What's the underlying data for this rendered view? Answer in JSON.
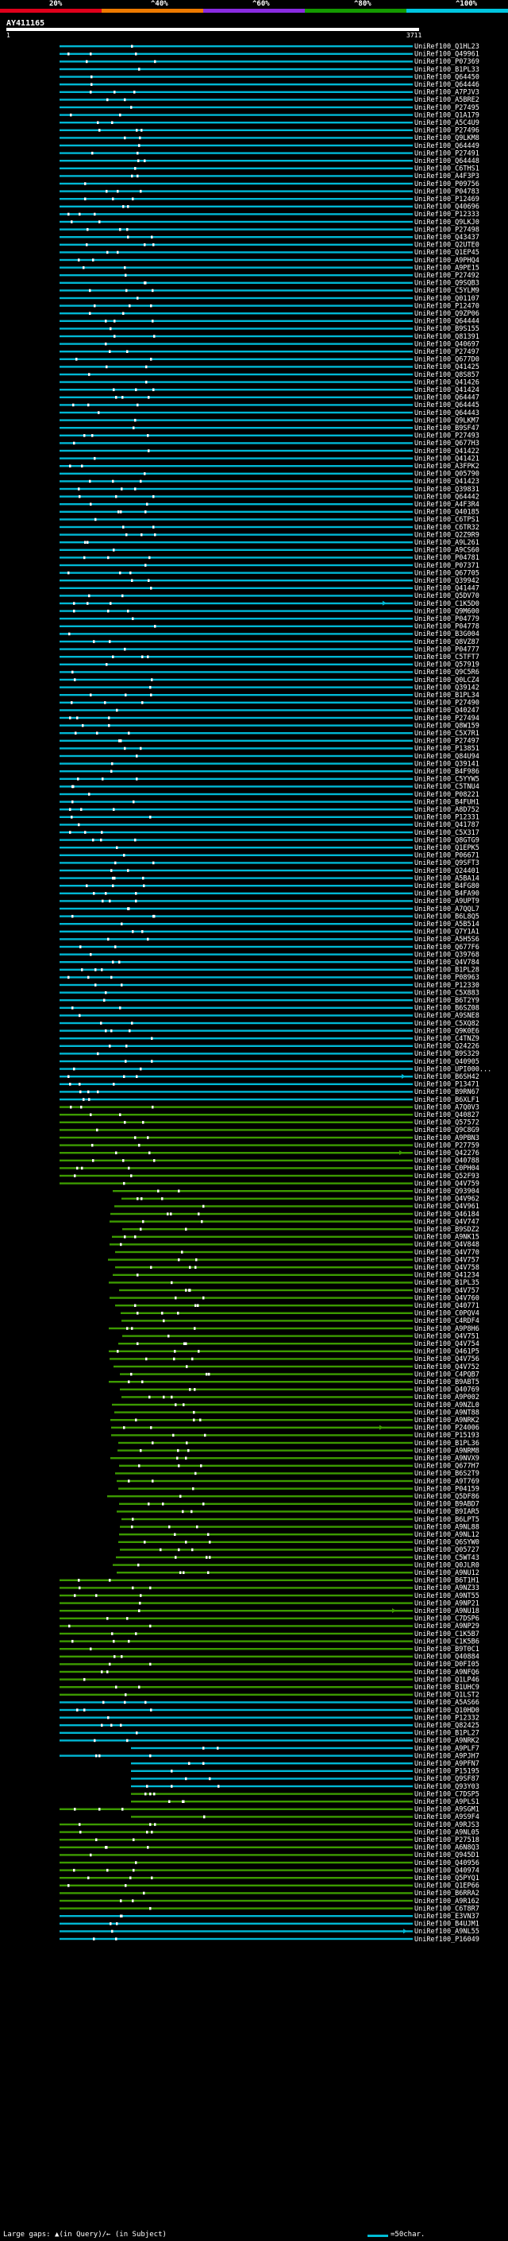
{
  "legend": {
    "labels": [
      "20%",
      "^40%",
      "^60%",
      "^80%",
      "^100%"
    ],
    "colors": [
      "#e0001b",
      "#ee7a00",
      "#8a2be2",
      "#149a00",
      "#00c6e0"
    ]
  },
  "query": {
    "title": "AY411165",
    "start": "1",
    "end": "3711"
  },
  "colors": {
    "cyan": "#00b7d4",
    "green": "#3c9a00",
    "marker": "#ffffff"
  },
  "hits": [
    "UniRef100_Q1HL23",
    "UniRef100_Q49961",
    "UniRef100_P07369",
    "UniRef100_B1PL33",
    "UniRef100_Q64450",
    "UniRef100_Q64446",
    "UniRef100_A7PJV3",
    "UniRef100_A5BRE2",
    "UniRef100_P27495",
    "UniRef100_Q1A179",
    "UniRef100_A5C4U9",
    "UniRef100_P27496",
    "UniRef100_Q9LKM8",
    "UniRef100_Q64449",
    "UniRef100_P27491",
    "UniRef100_Q64448",
    "UniRef100_C6THS1",
    "UniRef100_A4F3P3",
    "UniRef100_P09756",
    "UniRef100_P04783",
    "UniRef100_P12469",
    "UniRef100_Q40696",
    "UniRef100_P12333",
    "UniRef100_Q9LKJ0",
    "UniRef100_P27498",
    "UniRef100_Q43437",
    "UniRef100_Q2UTE0",
    "UniRef100_Q1EP45",
    "UniRef100_A9PHQ4",
    "UniRef100_A9PE15",
    "UniRef100_P27492",
    "UniRef100_Q9SQB3",
    "UniRef100_C5YLM9",
    "UniRef100_Q01107",
    "UniRef100_P12470",
    "UniRef100_Q9ZP06",
    "UniRef100_Q64444",
    "UniRef100_B9S155",
    "UniRef100_Q81391",
    "UniRef100_Q40697",
    "UniRef100_P27497",
    "UniRef100_Q677D0",
    "UniRef100_Q41425",
    "UniRef100_Q8S857",
    "UniRef100_Q41426",
    "UniRef100_Q41424",
    "UniRef100_Q64447",
    "UniRef100_Q64445",
    "UniRef100_Q64443",
    "UniRef100_Q9LKM7",
    "UniRef100_B9SF47",
    "UniRef100_P27493",
    "UniRef100_Q677H3",
    "UniRef100_Q41422",
    "UniRef100_Q41421",
    "UniRef100_A3FPK2",
    "UniRef100_Q05790",
    "UniRef100_Q41423",
    "UniRef100_Q39831",
    "UniRef100_Q64442",
    "UniRef100_A4F3R4",
    "UniRef100_Q40185",
    "UniRef100_C6TPS1",
    "UniRef100_C6TR32",
    "UniRef100_Q2Z9R9",
    "UniRef100_A9L261",
    "UniRef100_A9CS60",
    "UniRef100_P04781",
    "UniRef100_P07371",
    "UniRef100_Q67705",
    "UniRef100_Q39942",
    "UniRef100_Q41447",
    "UniRef100_Q5DV70",
    "UniRef100_C1K5D0",
    "UniRef100_Q9M600",
    "UniRef100_P04779",
    "UniRef100_P04778",
    "UniRef100_B3G004",
    "UniRef100_Q8VZ87",
    "UniRef100_P04777",
    "UniRef100_C5TFT7",
    "UniRef100_Q57919",
    "UniRef100_Q9C5R6",
    "UniRef100_Q0LCZ4",
    "UniRef100_Q39142",
    "UniRef100_B1PL34",
    "UniRef100_P27490",
    "UniRef100_Q40247",
    "UniRef100_P27494",
    "UniRef100_Q8W159",
    "UniRef100_C5X7R1",
    "UniRef100_P27497",
    "UniRef100_P13851",
    "UniRef100_Q84U94",
    "UniRef100_Q39141",
    "UniRef100_B4F986",
    "UniRef100_C5YYW5",
    "UniRef100_C5TNU4",
    "UniRef100_P08221",
    "UniRef100_B4FUH1",
    "UniRef100_A8D752",
    "UniRef100_P12331",
    "UniRef100_Q41787",
    "UniRef100_C5X317",
    "UniRef100_Q8GTG9",
    "UniRef100_Q1EPK5",
    "UniRef100_P06671",
    "UniRef100_Q9SFT3",
    "UniRef100_Q24401",
    "UniRef100_A5BA14",
    "UniRef100_B4FG80",
    "UniRef100_B4FA90",
    "UniRef100_A9UPT9",
    "UniRef100_A7QQL7",
    "UniRef100_B6L8Q5",
    "UniRef100_A5B514",
    "UniRef100_Q7Y1A1",
    "UniRef100_A5H5S6",
    "UniRef100_Q677F6",
    "UniRef100_Q39768",
    "UniRef100_Q4V784",
    "UniRef100_B1PL28",
    "UniRef100_P08963",
    "UniRef100_P12330",
    "UniRef100_C5X883",
    "UniRef100_B6T2Y9",
    "UniRef100_B6SZ08",
    "UniRef100_A9SNE8",
    "UniRef100_C5XQ82",
    "UniRef100_Q9K0E6",
    "UniRef100_C4TNZ9",
    "UniRef100_Q24226",
    "UniRef100_B9S329",
    "UniRef100_Q40905",
    "UniRef100_UPI000...",
    "UniRef100_B6SH42",
    "UniRef100_P13471",
    "UniRef100_B9RN67",
    "UniRef100_B6XLF1",
    "UniRef100_A7Q0V3",
    "UniRef100_Q40827",
    "UniRef100_Q57572",
    "UniRef100_Q9C8G9",
    "UniRef100_A9PBN3",
    "UniRef100_P27759",
    "UniRef100_Q42276",
    "UniRef100_Q40788",
    "UniRef100_C0PH04",
    "UniRef100_Q52F93",
    "UniRef100_Q4V759",
    "UniRef100_Q93904",
    "UniRef100_Q4V962",
    "UniRef100_Q4V961",
    "UniRef100_Q46184",
    "UniRef100_Q4V747",
    "UniRef100_B9SDZ2",
    "UniRef100_A9NK15",
    "UniRef100_Q4V848",
    "UniRef100_Q4V770",
    "UniRef100_Q4V757",
    "UniRef100_Q4V758",
    "UniRef100_Q41234",
    "UniRef100_B1PL35",
    "UniRef100_Q4V757",
    "UniRef100_Q4V760",
    "UniRef100_Q40771",
    "UniRef100_C0PQV4",
    "UniRef100_C4RDF4",
    "UniRef100_A9P8H6",
    "UniRef100_Q4V751",
    "UniRef100_Q4V754",
    "UniRef100_Q461P5",
    "UniRef100_Q4V756",
    "UniRef100_Q4V752",
    "UniRef100_C4PQB7",
    "UniRef100_B9ABT5",
    "UniRef100_Q40769",
    "UniRef100_A9P002",
    "UniRef100_A9NZL0",
    "UniRef100_A9NT88",
    "UniRef100_A9NRK2",
    "UniRef100_P24006",
    "UniRef100_P15193",
    "UniRef100_B1PL36",
    "UniRef100_A9NRM8",
    "UniRef100_A9NVX9",
    "UniRef100_Q677H7",
    "UniRef100_B6S2T9",
    "UniRef100_A9T769",
    "UniRef100_P04159",
    "UniRef100_Q5DF86",
    "UniRef100_B9ABD7",
    "UniRef100_B9IAR5",
    "UniRef100_B6LPT5",
    "UniRef100_A9NL88",
    "UniRef100_A9NL12",
    "UniRef100_Q6SYW0",
    "UniRef100_Q05727",
    "UniRef100_C5WT43",
    "UniRef100_Q0JLR0",
    "UniRef100_A9NU12",
    "UniRef100_B6T1H1",
    "UniRef100_A9NZ33",
    "UniRef100_A9NT55",
    "UniRef100_A9NP21",
    "UniRef100_A9NU18",
    "UniRef100_C7DSP6",
    "UniRef100_A9NP29",
    "UniRef100_C1K5B7",
    "UniRef100_C1K5B6",
    "UniRef100_B9T0C1",
    "UniRef100_Q40884",
    "UniRef100_D0FI05",
    "UniRef100_A9NFQ6",
    "UniRef100_Q1LP46",
    "UniRef100_B1UHC9",
    "UniRef100_Q1LST2",
    "UniRef100_A5AS66",
    "UniRef100_Q10HD0",
    "UniRef100_P12332",
    "UniRef100_Q82425",
    "UniRef100_B1PL27",
    "UniRef100_A9NRK2",
    "UniRef100_A9PLF7",
    "UniRef100_A9PJH7",
    "UniRef100_A9PFN7",
    "UniRef100_P15195",
    "UniRef100_Q9SF87",
    "UniRef100_Q93Y03",
    "UniRef100_C7DSP5",
    "UniRef100_A9PLS1",
    "UniRef100_A9SGM1",
    "UniRef100_A9S9F4",
    "UniRef100_A9RJS3",
    "UniRef100_A9NL05",
    "UniRef100_P27518",
    "UniRef100_A6N8Q3",
    "UniRef100_Q945D1",
    "UniRef100_Q40956",
    "UniRef100_Q40974",
    "UniRef100_Q5PYQ1",
    "UniRef100_Q1EP66",
    "UniRef100_B6RRA2",
    "UniRef100_A9R162",
    "UniRef100_C6T8R7",
    "UniRef100_E3VN37",
    "UniRef100_B4UJM1",
    "UniRef100_A9NL55",
    "UniRef100_P16049"
  ],
  "footer": {
    "text": "Large gaps: ▲(in Query)/← (in Subject)",
    "key_label": "=50char."
  }
}
